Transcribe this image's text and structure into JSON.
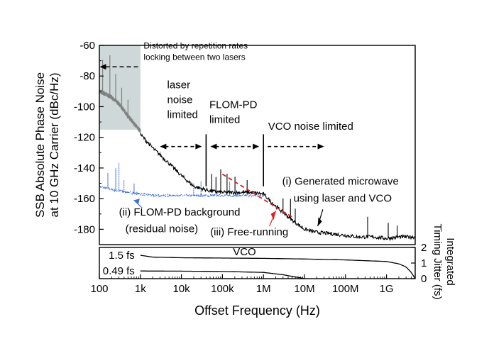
{
  "chart_data": [
    {
      "type": "line",
      "x_scale": "log",
      "xlim": [
        100,
        5000000000
      ],
      "ylim": [
        -190,
        -60
      ],
      "ylabel": [
        "SSB Absolute Phase Noise",
        "at 10 GHz Carrier (dBc/Hz)"
      ],
      "y_ticks": [
        -60,
        -80,
        -100,
        -120,
        -140,
        -160,
        -180
      ],
      "series": [
        {
          "name": "(i) Generated microwave using laser and VCO",
          "color": "#000000",
          "x": [
            1000,
            2000,
            5000,
            10000,
            20000,
            50000,
            100000,
            200000,
            500000,
            1000000,
            2000000,
            5000000,
            10000000,
            20000000,
            50000000,
            100000000,
            200000000,
            500000000,
            1000000000,
            2000000000,
            5000000000
          ],
          "y": [
            -118,
            -127,
            -137,
            -145,
            -152,
            -155,
            -156,
            -156,
            -156,
            -157,
            -165,
            -174,
            -180,
            -182,
            -183,
            -184,
            -185,
            -185,
            -186,
            -185,
            -185
          ]
        },
        {
          "name": "Distorted region (grey)",
          "color": "#808080",
          "x": [
            100,
            150,
            200,
            300,
            500,
            700,
            1000
          ],
          "y": [
            -90,
            -92,
            -94,
            -98,
            -106,
            -111,
            -116
          ]
        },
        {
          "name": "(ii) FLOM-PD background (residual noise)",
          "color": "#3d6fd6",
          "style": "dotted",
          "x": [
            100,
            200,
            500,
            1000,
            2000,
            5000,
            10000,
            20000,
            50000,
            100000,
            200000,
            500000,
            1000000
          ],
          "y": [
            -152,
            -154,
            -156,
            -157,
            -158,
            -158,
            -158,
            -158,
            -158,
            -158,
            -158,
            -158,
            -158
          ]
        },
        {
          "name": "(iii) Free-running VCO",
          "color": "#e02020",
          "style": "dashed",
          "x": [
            100000,
            5000000
          ],
          "y": [
            -144,
            -172
          ]
        }
      ],
      "shaded_region": {
        "x": [
          100,
          1000
        ],
        "y": [
          -115,
          -60
        ],
        "label": [
          "Distorted by repetition rates",
          "locking between two lasers"
        ]
      },
      "vertical_lines_x": [
        40000,
        1000000
      ],
      "region_labels": [
        {
          "lines": [
            "laser",
            "noise",
            "limited"
          ],
          "x_range": [
            3000,
            40000
          ]
        },
        {
          "lines": [
            "FLOM-PD",
            "limited"
          ],
          "x_range": [
            40000,
            1000000
          ]
        },
        {
          "lines": [
            "VCO noise limited"
          ],
          "x_range": [
            1000000,
            30000000
          ]
        }
      ],
      "annotations": {
        "generated": [
          "(i) Generated microwave",
          "using laser and VCO"
        ],
        "flom_pd": [
          "(ii) FLOM-PD background",
          "(residual noise)"
        ],
        "vco": [
          "(iii) Free-running",
          "VCO"
        ]
      }
    },
    {
      "type": "line",
      "x_scale": "log",
      "xlim": [
        100,
        5000000000
      ],
      "ylim": [
        0,
        2
      ],
      "ylabel": [
        "Integrated",
        "Timing Jitter (fs)"
      ],
      "y_ticks": [
        0,
        1,
        2
      ],
      "xlabel": "Offset Frequency (Hz)",
      "x_ticks": [
        {
          "value": 100,
          "label": "100"
        },
        {
          "value": 1000,
          "label": "1k"
        },
        {
          "value": 10000,
          "label": "10k"
        },
        {
          "value": 100000,
          "label": "100k"
        },
        {
          "value": 1000000,
          "label": "1M"
        },
        {
          "value": 10000000,
          "label": "10M"
        },
        {
          "value": 100000000,
          "label": "100M"
        },
        {
          "value": 1000000000,
          "label": "1G"
        }
      ],
      "series": [
        {
          "name": "1.5 fs",
          "x": [
            1000,
            2000,
            10000,
            100000,
            1000000,
            10000000,
            100000000,
            1000000000,
            2000000000,
            3000000000,
            4000000000,
            5000000000
          ],
          "y": [
            1.5,
            1.38,
            1.34,
            1.32,
            1.3,
            1.26,
            1.2,
            1.1,
            0.95,
            0.75,
            0.4,
            0.0
          ]
        },
        {
          "name": "0.49 fs",
          "x": [
            1000,
            10000,
            100000,
            1000000,
            3000000,
            7000000,
            10000000
          ],
          "y": [
            0.49,
            0.48,
            0.46,
            0.4,
            0.25,
            0.08,
            0.0
          ]
        }
      ]
    }
  ]
}
